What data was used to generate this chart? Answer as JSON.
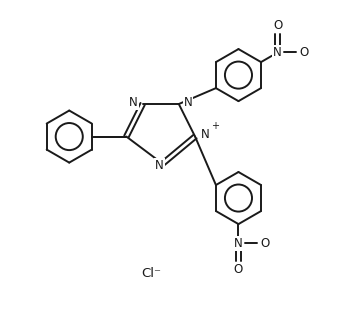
{
  "background_color": "#ffffff",
  "line_color": "#1a1a1a",
  "line_width": 1.4,
  "figsize": [
    3.54,
    3.31
  ],
  "dpi": 100,
  "fs": 8.5,
  "ring_r": 0.72,
  "xlim": [
    0,
    9
  ],
  "ylim": [
    0,
    9
  ]
}
